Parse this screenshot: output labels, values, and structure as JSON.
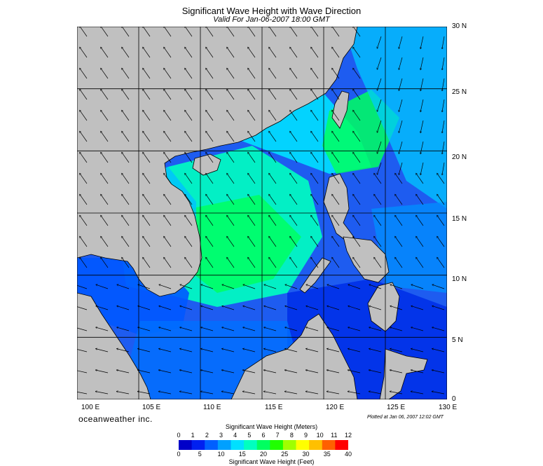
{
  "title": "Significant Wave Height with Wave Direction",
  "subtitle": "Valid For Jan-06-2007 18:00 GMT",
  "axes": {
    "lon_labels": [
      "100 E",
      "105 E",
      "110 E",
      "115 E",
      "120 E",
      "125 E",
      "130 E"
    ],
    "lat_labels": [
      "30 N",
      "25 N",
      "20 N",
      "15 N",
      "10 N",
      "5 N",
      "0"
    ],
    "lon_range": [
      100,
      130
    ],
    "lat_range": [
      0,
      30
    ],
    "grid": true
  },
  "brand": "oceanweather inc.",
  "plotted_note": "Plotted at Jan 06, 2007 12:02 GMT",
  "colorbar": {
    "meters_title": "Significant Wave Height (Meters)",
    "feet_title": "Significant Wave Height (Feet)",
    "meters_ticks": [
      "0",
      "1",
      "2",
      "3",
      "4",
      "5",
      "6",
      "7",
      "8",
      "9",
      "10",
      "11",
      "12"
    ],
    "feet_ticks": [
      "0",
      "5",
      "10",
      "15",
      "20",
      "25",
      "30",
      "35",
      "40"
    ],
    "colors": [
      "#0000c8",
      "#0020f0",
      "#0060ff",
      "#00a0ff",
      "#00e0ff",
      "#00ffc0",
      "#00ff60",
      "#20ff00",
      "#a0ff00",
      "#ffff00",
      "#ffc000",
      "#ff6000",
      "#ff0000"
    ]
  },
  "colors": {
    "land": "#c0c0c0",
    "grid": "#000000",
    "coast": "#000000"
  }
}
